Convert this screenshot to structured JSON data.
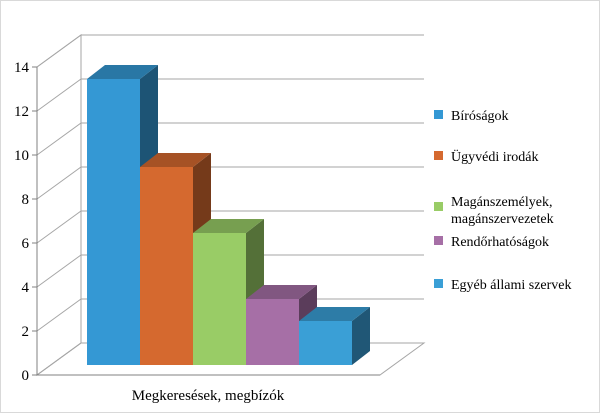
{
  "chart_data": {
    "type": "bar",
    "style": "3d-clustered",
    "categories": [
      "Megkeresések, megbízók"
    ],
    "xlabel": "",
    "ylabel": "",
    "ylim": [
      0,
      14
    ],
    "yticks": [
      0,
      2,
      4,
      6,
      8,
      10,
      12,
      14
    ],
    "grid": true,
    "legend": "right",
    "series": [
      {
        "name": "Bíróságok",
        "values": [
          13
        ],
        "color": "#3498d4"
      },
      {
        "name": "Ügyvédi irodák",
        "values": [
          9
        ],
        "color": "#d5692f"
      },
      {
        "name": "Magánszemélyek, magánszervezetek",
        "values": [
          6
        ],
        "color": "#99cc66"
      },
      {
        "name": "Rendőrhatóságok",
        "values": [
          3
        ],
        "color": "#a66fa6"
      },
      {
        "name": "Egyéb állami szervek",
        "values": [
          2
        ],
        "color": "#3a9fd6"
      }
    ]
  }
}
